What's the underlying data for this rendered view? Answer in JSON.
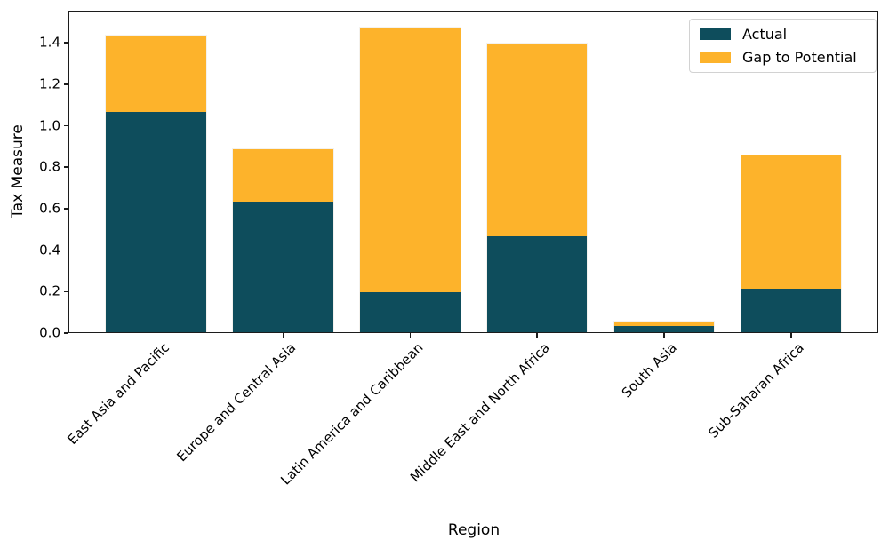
{
  "chart_data": {
    "type": "bar",
    "stacked": true,
    "title": "",
    "xlabel": "Region",
    "ylabel": "Tax Measure",
    "categories": [
      "East Asia and Pacific",
      "Europe and Central Asia",
      "Latin America and Caribbean",
      "Middle East and North Africa",
      "South Asia",
      "Sub-Saharan Africa"
    ],
    "series": [
      {
        "name": "Actual",
        "color": "#0e4d5c",
        "values": [
          1.07,
          0.64,
          0.2,
          0.47,
          0.04,
          0.22
        ]
      },
      {
        "name": "Gap to Potential",
        "color": "#fdb32b",
        "values": [
          0.37,
          0.25,
          1.28,
          0.93,
          0.02,
          0.64
        ]
      }
    ],
    "stack_totals": [
      1.44,
      0.89,
      1.48,
      1.4,
      0.06,
      0.86
    ],
    "ylim": [
      0,
      1.555
    ],
    "yticks": [
      0.0,
      0.2,
      0.4,
      0.6,
      0.8,
      1.0,
      1.2,
      1.4
    ],
    "grid": false,
    "legend_position": "upper right"
  },
  "legend": {
    "items": [
      {
        "label": "Actual",
        "color": "#0e4d5c"
      },
      {
        "label": "Gap to Potential",
        "color": "#fdb32b"
      }
    ]
  }
}
